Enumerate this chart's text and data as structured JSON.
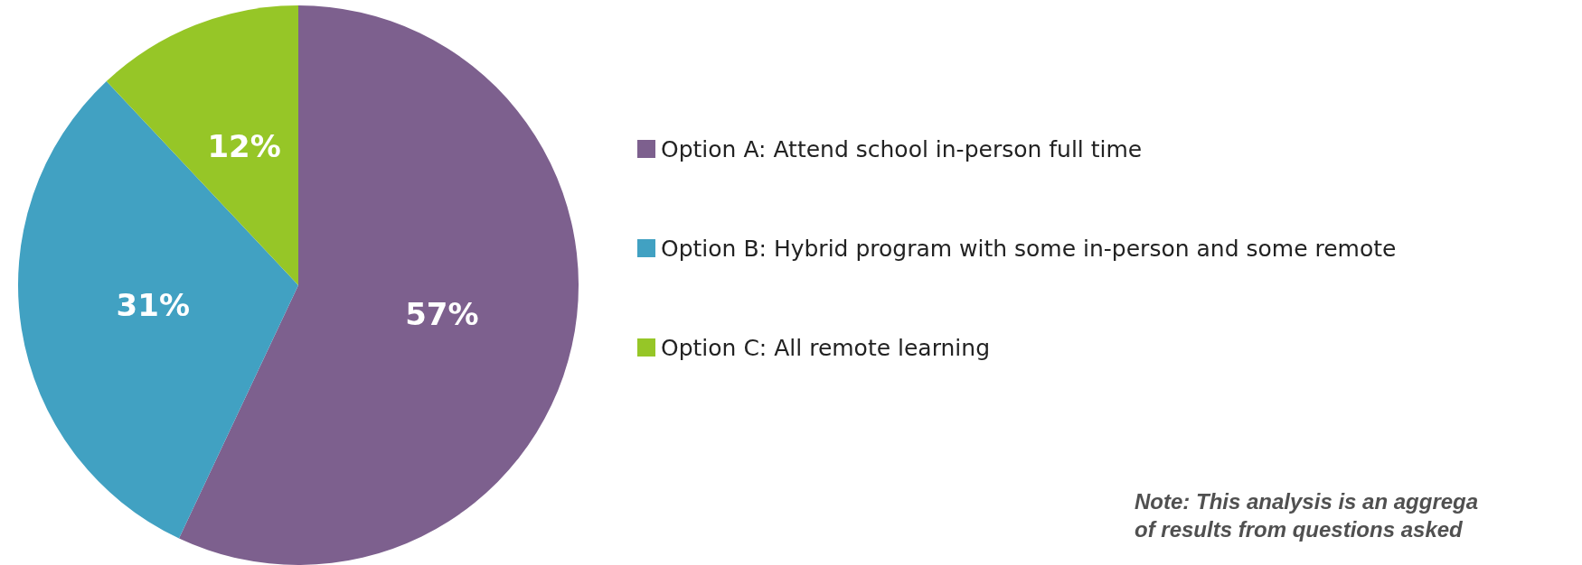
{
  "chart_data": {
    "type": "pie",
    "categories": [
      "Option A: Attend school in-person full time",
      "Option B: Hybrid program with some in-person and some remote",
      "Option C: All remote learning"
    ],
    "values": [
      57,
      31,
      12
    ],
    "colors": [
      "#7d608e",
      "#41a1c2",
      "#96c627"
    ],
    "value_labels": [
      "57%",
      "31%",
      "12%"
    ],
    "legend": "right",
    "annotations": [
      "Note: This analysis is an aggrega",
      "of results from questions asked"
    ]
  }
}
